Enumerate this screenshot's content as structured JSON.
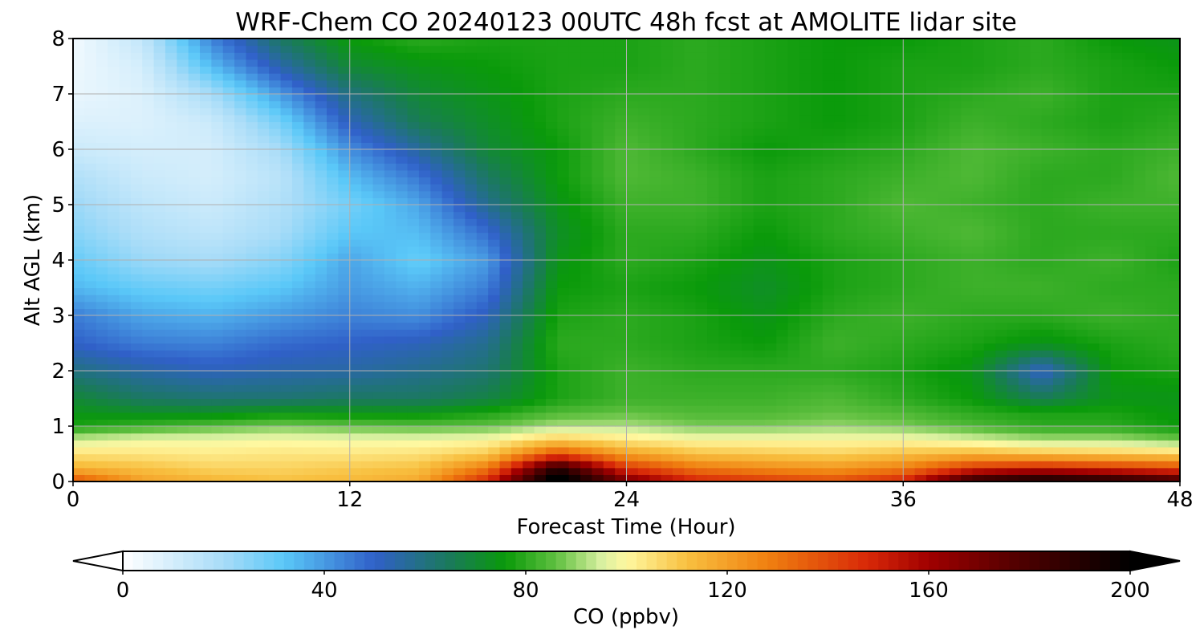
{
  "chart_data": {
    "type": "heatmap",
    "title": "WRF-Chem CO  20240123 00UTC 48h fcst at AMOLITE lidar site",
    "xlabel": "Forecast Time (Hour)",
    "ylabel": "Alt AGL (km)",
    "xlim": [
      0,
      48
    ],
    "ylim": [
      0,
      8
    ],
    "x_ticks": [
      "0",
      "12",
      "24",
      "36",
      "48"
    ],
    "y_ticks": [
      "0",
      "1",
      "2",
      "3",
      "4",
      "5",
      "6",
      "7",
      "8"
    ],
    "grid": true,
    "x": [
      0,
      3,
      6,
      9,
      12,
      15,
      18,
      21,
      24,
      27,
      30,
      33,
      36,
      39,
      42,
      45,
      48
    ],
    "y": [
      0,
      0.25,
      0.5,
      0.75,
      1,
      1.25,
      1.5,
      2,
      2.5,
      3,
      3.5,
      4,
      4.5,
      5,
      5.5,
      6,
      6.5,
      7,
      7.5,
      8
    ],
    "z": [
      [
        140,
        120,
        115,
        112,
        114,
        118,
        150,
        210,
        170,
        150,
        145,
        140,
        150,
        190,
        200,
        195,
        185
      ],
      [
        115,
        112,
        108,
        108,
        110,
        112,
        130,
        190,
        145,
        130,
        125,
        122,
        128,
        145,
        150,
        145,
        140
      ],
      [
        105,
        104,
        103,
        104,
        104,
        105,
        110,
        140,
        120,
        112,
        110,
        108,
        112,
        115,
        112,
        110,
        108
      ],
      [
        95,
        98,
        98,
        99,
        98,
        98,
        100,
        110,
        104,
        100,
        100,
        100,
        100,
        96,
        92,
        92,
        88
      ],
      [
        78,
        82,
        85,
        88,
        86,
        85,
        86,
        92,
        92,
        88,
        88,
        90,
        88,
        84,
        80,
        80,
        76
      ],
      [
        74,
        72,
        72,
        75,
        74,
        74,
        78,
        84,
        86,
        84,
        84,
        86,
        84,
        80,
        78,
        78,
        75
      ],
      [
        70,
        64,
        62,
        62,
        64,
        64,
        68,
        78,
        82,
        82,
        82,
        84,
        80,
        76,
        66,
        74,
        74
      ],
      [
        60,
        55,
        52,
        54,
        55,
        58,
        62,
        78,
        82,
        80,
        80,
        80,
        78,
        74,
        50,
        76,
        78
      ],
      [
        50,
        45,
        44,
        48,
        50,
        52,
        58,
        80,
        80,
        78,
        76,
        82,
        80,
        78,
        74,
        78,
        80
      ],
      [
        45,
        38,
        36,
        40,
        44,
        42,
        52,
        78,
        80,
        78,
        74,
        80,
        82,
        80,
        80,
        82,
        80
      ],
      [
        35,
        30,
        28,
        32,
        40,
        36,
        45,
        76,
        78,
        76,
        72,
        78,
        80,
        82,
        82,
        80,
        80
      ],
      [
        30,
        22,
        20,
        25,
        38,
        30,
        40,
        74,
        80,
        78,
        74,
        78,
        80,
        82,
        80,
        82,
        78
      ],
      [
        25,
        18,
        15,
        20,
        32,
        34,
        48,
        72,
        80,
        80,
        76,
        80,
        82,
        84,
        80,
        80,
        80
      ],
      [
        22,
        15,
        12,
        18,
        28,
        38,
        58,
        74,
        82,
        82,
        78,
        80,
        84,
        82,
        80,
        82,
        82
      ],
      [
        18,
        12,
        10,
        16,
        34,
        46,
        64,
        76,
        84,
        82,
        78,
        80,
        82,
        84,
        80,
        80,
        84
      ],
      [
        12,
        10,
        10,
        20,
        42,
        56,
        70,
        76,
        84,
        80,
        76,
        78,
        80,
        84,
        82,
        80,
        82
      ],
      [
        8,
        8,
        12,
        28,
        52,
        66,
        72,
        78,
        82,
        80,
        78,
        76,
        78,
        82,
        80,
        78,
        80
      ],
      [
        5,
        8,
        20,
        40,
        60,
        70,
        74,
        78,
        80,
        80,
        78,
        76,
        78,
        80,
        82,
        78,
        78
      ],
      [
        4,
        10,
        34,
        54,
        70,
        74,
        76,
        78,
        78,
        80,
        78,
        76,
        78,
        78,
        80,
        78,
        76
      ],
      [
        3,
        14,
        44,
        64,
        76,
        80,
        78,
        78,
        78,
        80,
        78,
        76,
        76,
        78,
        80,
        76,
        74
      ]
    ],
    "colorbar": {
      "label": "CO  (ppbv)",
      "min": 0,
      "max": 200,
      "ticks": [
        "0",
        "40",
        "80",
        "120",
        "160",
        "200"
      ],
      "extend": "both",
      "colormap": [
        [
          0,
          "#ffffff"
        ],
        [
          20,
          "#a8dcf8"
        ],
        [
          32,
          "#5ac8f8"
        ],
        [
          50,
          "#3060c8"
        ],
        [
          65,
          "#1a7a5a"
        ],
        [
          76,
          "#0a9a0a"
        ],
        [
          86,
          "#60c040"
        ],
        [
          95,
          "#d8f0a0"
        ],
        [
          100,
          "#fff8a0"
        ],
        [
          112,
          "#f8c040"
        ],
        [
          128,
          "#f08010"
        ],
        [
          148,
          "#d82808"
        ],
        [
          160,
          "#a00000"
        ],
        [
          178,
          "#500000"
        ],
        [
          200,
          "#000000"
        ]
      ]
    }
  }
}
